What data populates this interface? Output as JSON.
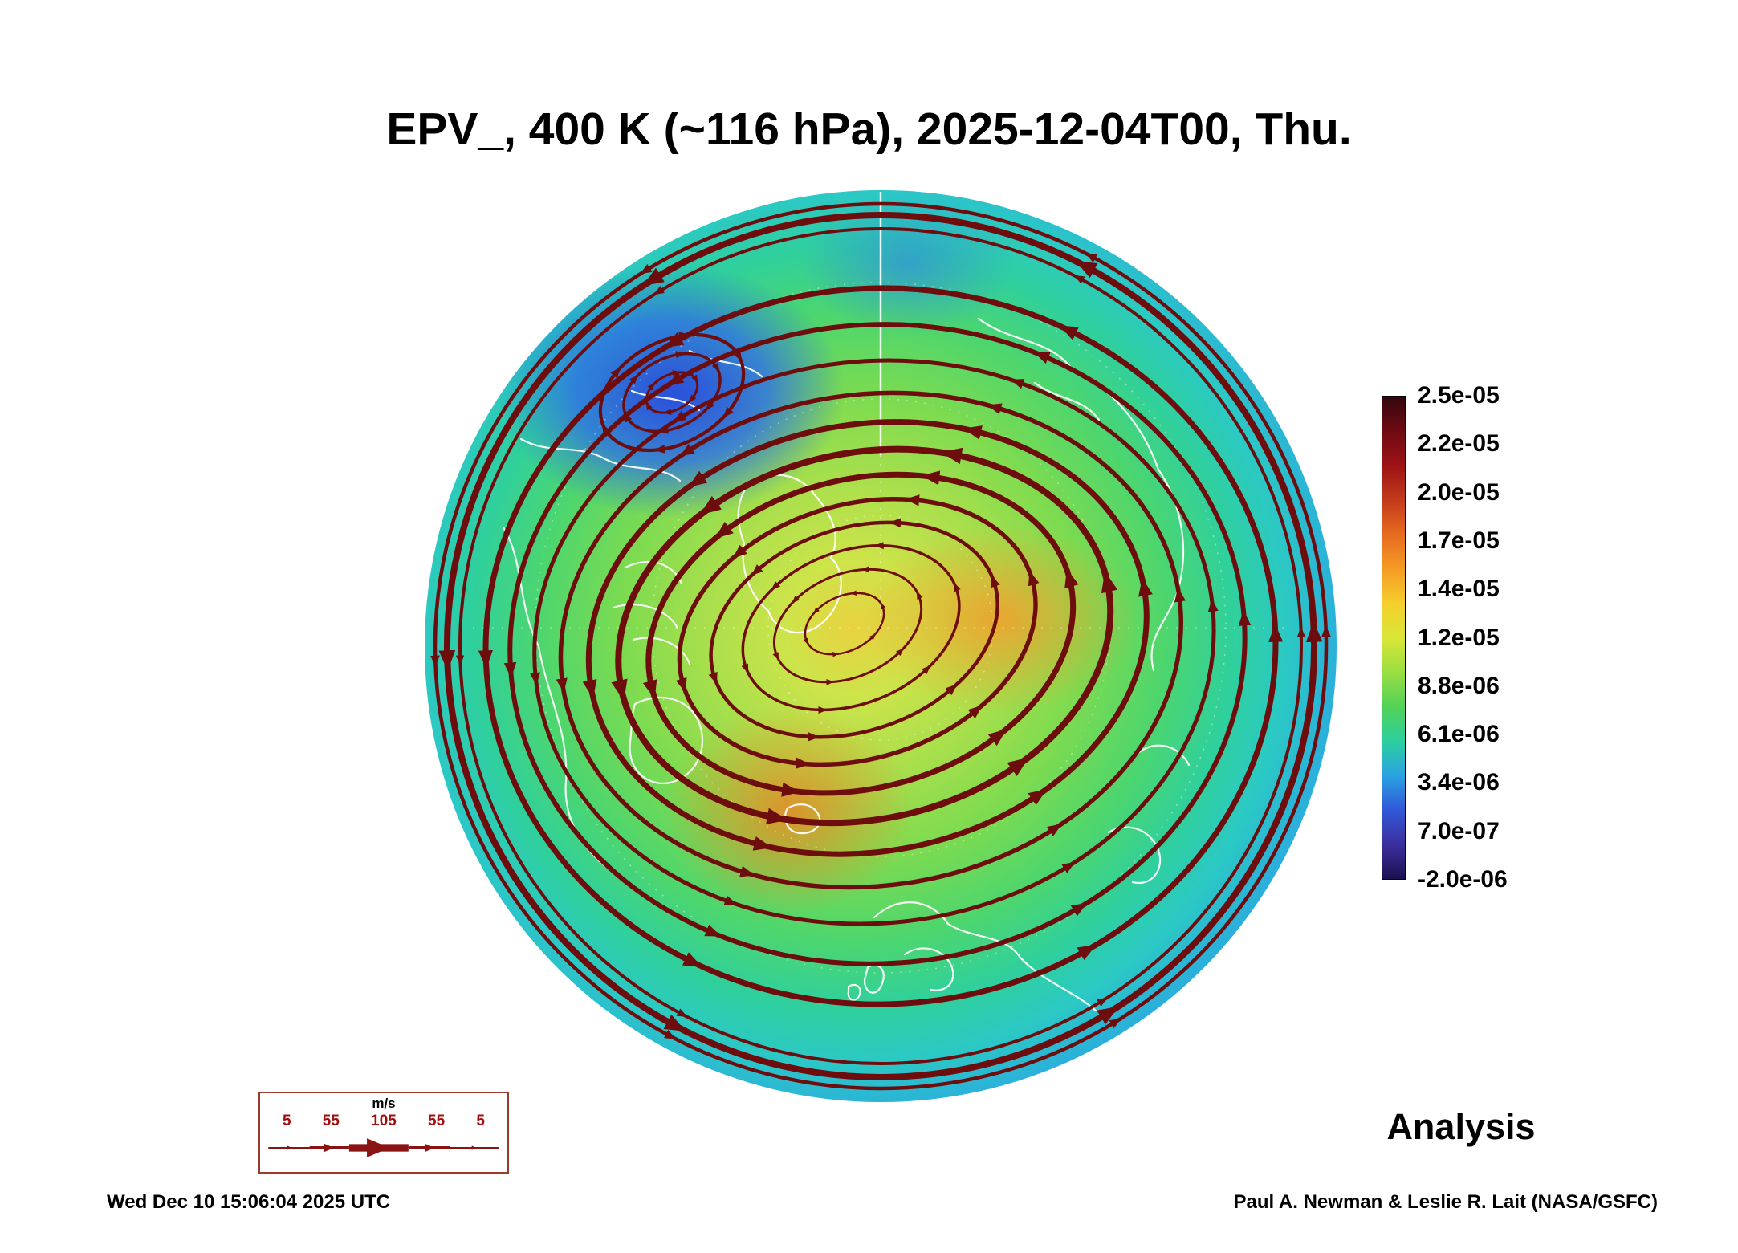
{
  "title": "EPV_, 400 K (~116 hPa), 2025-12-04T00, Thu.",
  "analysis_label": "Analysis",
  "footer": {
    "generated": "Wed Dec 10 15:06:04 2025 UTC",
    "credit": "Paul A. Newman & Leslie R. Lait (NASA/GSFC)"
  },
  "colorbar": {
    "ticks": [
      "2.5e-05",
      "2.2e-05",
      "2.0e-05",
      "1.7e-05",
      "1.4e-05",
      "1.2e-05",
      "8.8e-06",
      "6.1e-06",
      "3.4e-06",
      "7.0e-07",
      "-2.0e-06"
    ],
    "gradient": [
      "#33060e",
      "#6e0b12",
      "#9d1316",
      "#c33a1c",
      "#e66b1f",
      "#f59b25",
      "#f5cf2d",
      "#d9e636",
      "#9ade42",
      "#52d257",
      "#2ccf9e",
      "#2aa2e2",
      "#3158d8",
      "#3b2f9e",
      "#1c1050"
    ],
    "streamline_color": "#6d0d0d",
    "coastline_color": "#ffffff"
  },
  "wind_legend": {
    "unit": "m/s",
    "ticks": [
      "5",
      "55",
      "105",
      "55",
      "5"
    ]
  },
  "chart_data": {
    "type": "heatmap",
    "title": "EPV_, 400 K (~116 hPa), 2025-12-04T00, Thu.",
    "quantity": "Ertel potential vorticity (EPV)",
    "surface": "400 K potential temperature surface (~116 hPa)",
    "valid_time": "2025-12-04T00 (Thursday)",
    "product": "Analysis",
    "projection": "Northern Hemisphere polar stereographic, pole near image center",
    "colorbar_ticks_si": [
      2.5e-05,
      2.2e-05,
      2e-05,
      1.7e-05,
      1.4e-05,
      1.2e-05,
      8.8e-06,
      6.1e-06,
      3.4e-06,
      7e-07,
      -2e-06
    ],
    "colorbar_range": [
      -2e-06,
      2.5e-05
    ],
    "wind_speed_scale_mps": [
      5,
      55,
      105,
      55,
      5
    ],
    "overlays": [
      "dark-red wind streamlines with arrowheads, line thickness proportional to wind speed",
      "white coastlines",
      "white dashed/dotted graticule with meridian line at top"
    ],
    "features": [
      "High EPV (green/yellow/orange, ~1.2e-05 to 2.0e-05) polar vortex air covering the polar cap, elongated off the pole",
      "Low EPV (blue, ~0 to 6e-06) surrounding ring at lower latitudes toward the map edge",
      "Closed anticyclonic circulation embedded in low-EPV blue air in the upper-left (North Pacific/Alaska sector)",
      "Strong circumpolar jet indicated by thick streamlines at mid radius and near the outer rim",
      "Orange EPV maxima patches right of center (Siberian sector) and lower-left of center"
    ],
    "generated_timestamp": "Wed Dec 10 15:06:04 2025 UTC",
    "credit": "Paul A. Newman & Leslie R. Lait (NASA/GSFC)"
  }
}
